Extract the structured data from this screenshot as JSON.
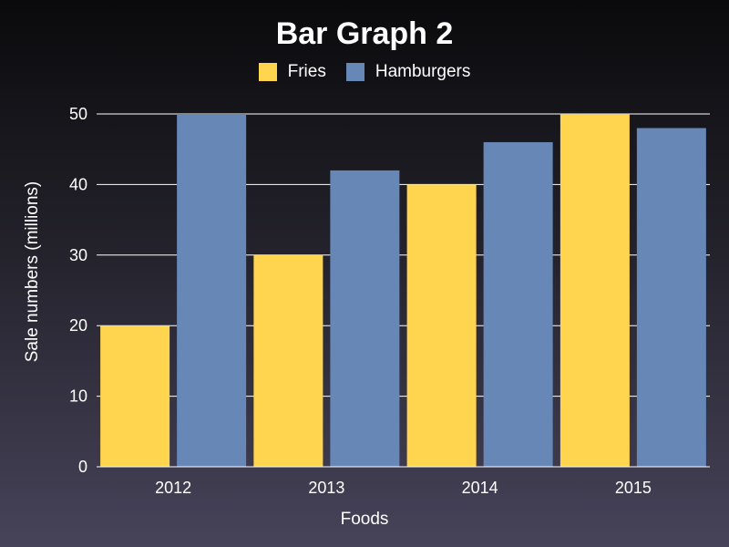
{
  "chart_data": {
    "type": "bar",
    "title": "Bar Graph 2",
    "xlabel": "Foods",
    "ylabel": "Sale numbers (millions)",
    "categories": [
      "2012",
      "2013",
      "2014",
      "2015"
    ],
    "series": [
      {
        "name": "Fries",
        "values": [
          20,
          30,
          40,
          50
        ],
        "color": "#ffd54f"
      },
      {
        "name": "Hamburgers",
        "values": [
          50,
          42,
          46,
          48
        ],
        "color": "#6787b7"
      }
    ],
    "ylim": [
      0,
      50
    ],
    "yticks": [
      "0",
      "10",
      "20",
      "30",
      "40",
      "50"
    ],
    "grid": true,
    "legend_position": "top-center"
  }
}
